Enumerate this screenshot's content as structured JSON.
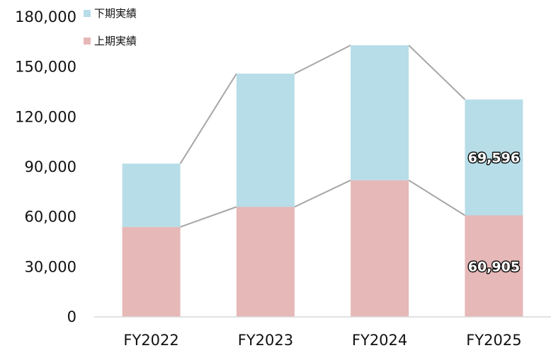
{
  "chart_data": {
    "type": "bar",
    "stacked": true,
    "categories": [
      "FY2022",
      "FY2023",
      "FY2024",
      "FY2025"
    ],
    "series": [
      {
        "name": "上期実績",
        "color": "#e6b8b7",
        "values": [
          54000,
          66000,
          82000,
          60905
        ]
      },
      {
        "name": "下期実績",
        "color": "#b7dde8",
        "values": [
          38000,
          80000,
          81000,
          69596
        ]
      }
    ],
    "y_ticks": [
      "0",
      "30,000",
      "60,000",
      "90,000",
      "120,000",
      "150,000",
      "180,000"
    ],
    "ylim": [
      0,
      180000
    ],
    "data_labels": [
      {
        "category": "FY2025",
        "series": "上期実績",
        "text": "60,905"
      },
      {
        "category": "FY2025",
        "series": "下期実績",
        "text": "69,596"
      }
    ],
    "connector_lines": true,
    "connector_color": "#a6a6a6",
    "grid": false,
    "legend_position": "top-left"
  }
}
